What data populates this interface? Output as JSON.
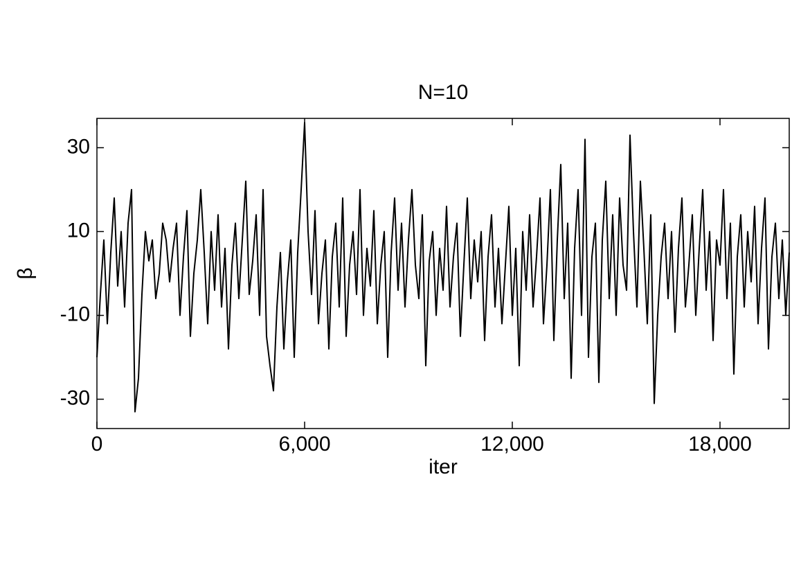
{
  "chart_data": {
    "type": "line",
    "title": "N=10",
    "x_label": "iter",
    "y_label": "β",
    "xlim": [
      0,
      20000
    ],
    "xticks": [
      0,
      {
        "value": 6000,
        "label": "6,000"
      },
      {
        "value": 12000,
        "label": "12,000"
      },
      {
        "value": 18000,
        "label": "18,000"
      }
    ],
    "ylim": [
      -37,
      37
    ],
    "yticks": [
      30,
      10,
      -10,
      -30
    ],
    "x": [
      0,
      100,
      200,
      300,
      400,
      500,
      600,
      700,
      800,
      900,
      1000,
      1100,
      1200,
      1300,
      1400,
      1500,
      1600,
      1700,
      1800,
      1900,
      2000,
      2100,
      2200,
      2300,
      2400,
      2500,
      2600,
      2700,
      2800,
      2900,
      3000,
      3100,
      3200,
      3300,
      3400,
      3500,
      3600,
      3700,
      3800,
      3900,
      4000,
      4100,
      4200,
      4300,
      4400,
      4500,
      4600,
      4700,
      4800,
      4900,
      5000,
      5100,
      5200,
      5300,
      5400,
      5500,
      5600,
      5700,
      5800,
      5900,
      6000,
      6100,
      6200,
      6300,
      6400,
      6500,
      6600,
      6700,
      6800,
      6900,
      7000,
      7100,
      7200,
      7300,
      7400,
      7500,
      7600,
      7700,
      7800,
      7900,
      8000,
      8100,
      8200,
      8300,
      8400,
      8500,
      8600,
      8700,
      8800,
      8900,
      9000,
      9100,
      9200,
      9300,
      9400,
      9500,
      9600,
      9700,
      9800,
      9900,
      10000,
      10100,
      10200,
      10300,
      10400,
      10500,
      10600,
      10700,
      10800,
      10900,
      11000,
      11100,
      11200,
      11300,
      11400,
      11500,
      11600,
      11700,
      11800,
      11900,
      12000,
      12100,
      12200,
      12300,
      12400,
      12500,
      12600,
      12700,
      12800,
      12900,
      13000,
      13100,
      13200,
      13300,
      13400,
      13500,
      13600,
      13700,
      13800,
      13900,
      14000,
      14100,
      14200,
      14300,
      14400,
      14500,
      14600,
      14700,
      14800,
      14900,
      15000,
      15100,
      15200,
      15300,
      15400,
      15500,
      15600,
      15700,
      15800,
      15900,
      16000,
      16100,
      16200,
      16300,
      16400,
      16500,
      16600,
      16700,
      16800,
      16900,
      17000,
      17100,
      17200,
      17300,
      17400,
      17500,
      17600,
      17700,
      17800,
      17900,
      18000,
      18100,
      18200,
      18300,
      18400,
      18500,
      18600,
      18700,
      18800,
      18900,
      19000,
      19100,
      19200,
      19300,
      19400,
      19500,
      19600,
      19700,
      19800,
      19900,
      20000
    ],
    "series": [
      {
        "name": "beta",
        "color": "#000000",
        "values": [
          -20,
          -5,
          8,
          -12,
          5,
          18,
          -3,
          10,
          -8,
          12,
          20,
          -33,
          -25,
          -5,
          10,
          3,
          8,
          -6,
          0,
          12,
          8,
          -2,
          6,
          12,
          -10,
          4,
          15,
          -15,
          0,
          8,
          20,
          5,
          -12,
          10,
          -4,
          14,
          -8,
          6,
          -18,
          2,
          12,
          -6,
          8,
          22,
          -5,
          3,
          14,
          -10,
          20,
          -15,
          -22,
          -28,
          -8,
          5,
          -18,
          -2,
          8,
          -20,
          5,
          20,
          36,
          10,
          -5,
          15,
          -12,
          0,
          8,
          -18,
          4,
          12,
          -8,
          18,
          -15,
          2,
          10,
          -5,
          20,
          -10,
          6,
          -3,
          15,
          -12,
          2,
          10,
          -20,
          5,
          18,
          -4,
          12,
          -8,
          8,
          20,
          2,
          -6,
          14,
          -22,
          3,
          10,
          -10,
          6,
          -4,
          16,
          -8,
          4,
          12,
          -15,
          2,
          18,
          -6,
          8,
          -2,
          10,
          -16,
          4,
          14,
          -8,
          6,
          -12,
          2,
          16,
          -10,
          6,
          -22,
          10,
          -4,
          14,
          -8,
          4,
          18,
          -12,
          2,
          20,
          -16,
          8,
          26,
          -6,
          12,
          -25,
          6,
          20,
          -10,
          32,
          -20,
          4,
          12,
          -26,
          8,
          22,
          -6,
          14,
          -10,
          18,
          2,
          -4,
          33,
          10,
          -8,
          22,
          6,
          -12,
          14,
          -31,
          -10,
          4,
          12,
          -6,
          10,
          -14,
          6,
          18,
          -8,
          2,
          14,
          -10,
          6,
          20,
          -4,
          10,
          -16,
          8,
          2,
          20,
          -6,
          12,
          -24,
          4,
          14,
          -8,
          10,
          -2,
          16,
          -12,
          6,
          18,
          -18,
          4,
          12,
          -6,
          8,
          -10,
          5
        ]
      }
    ]
  }
}
